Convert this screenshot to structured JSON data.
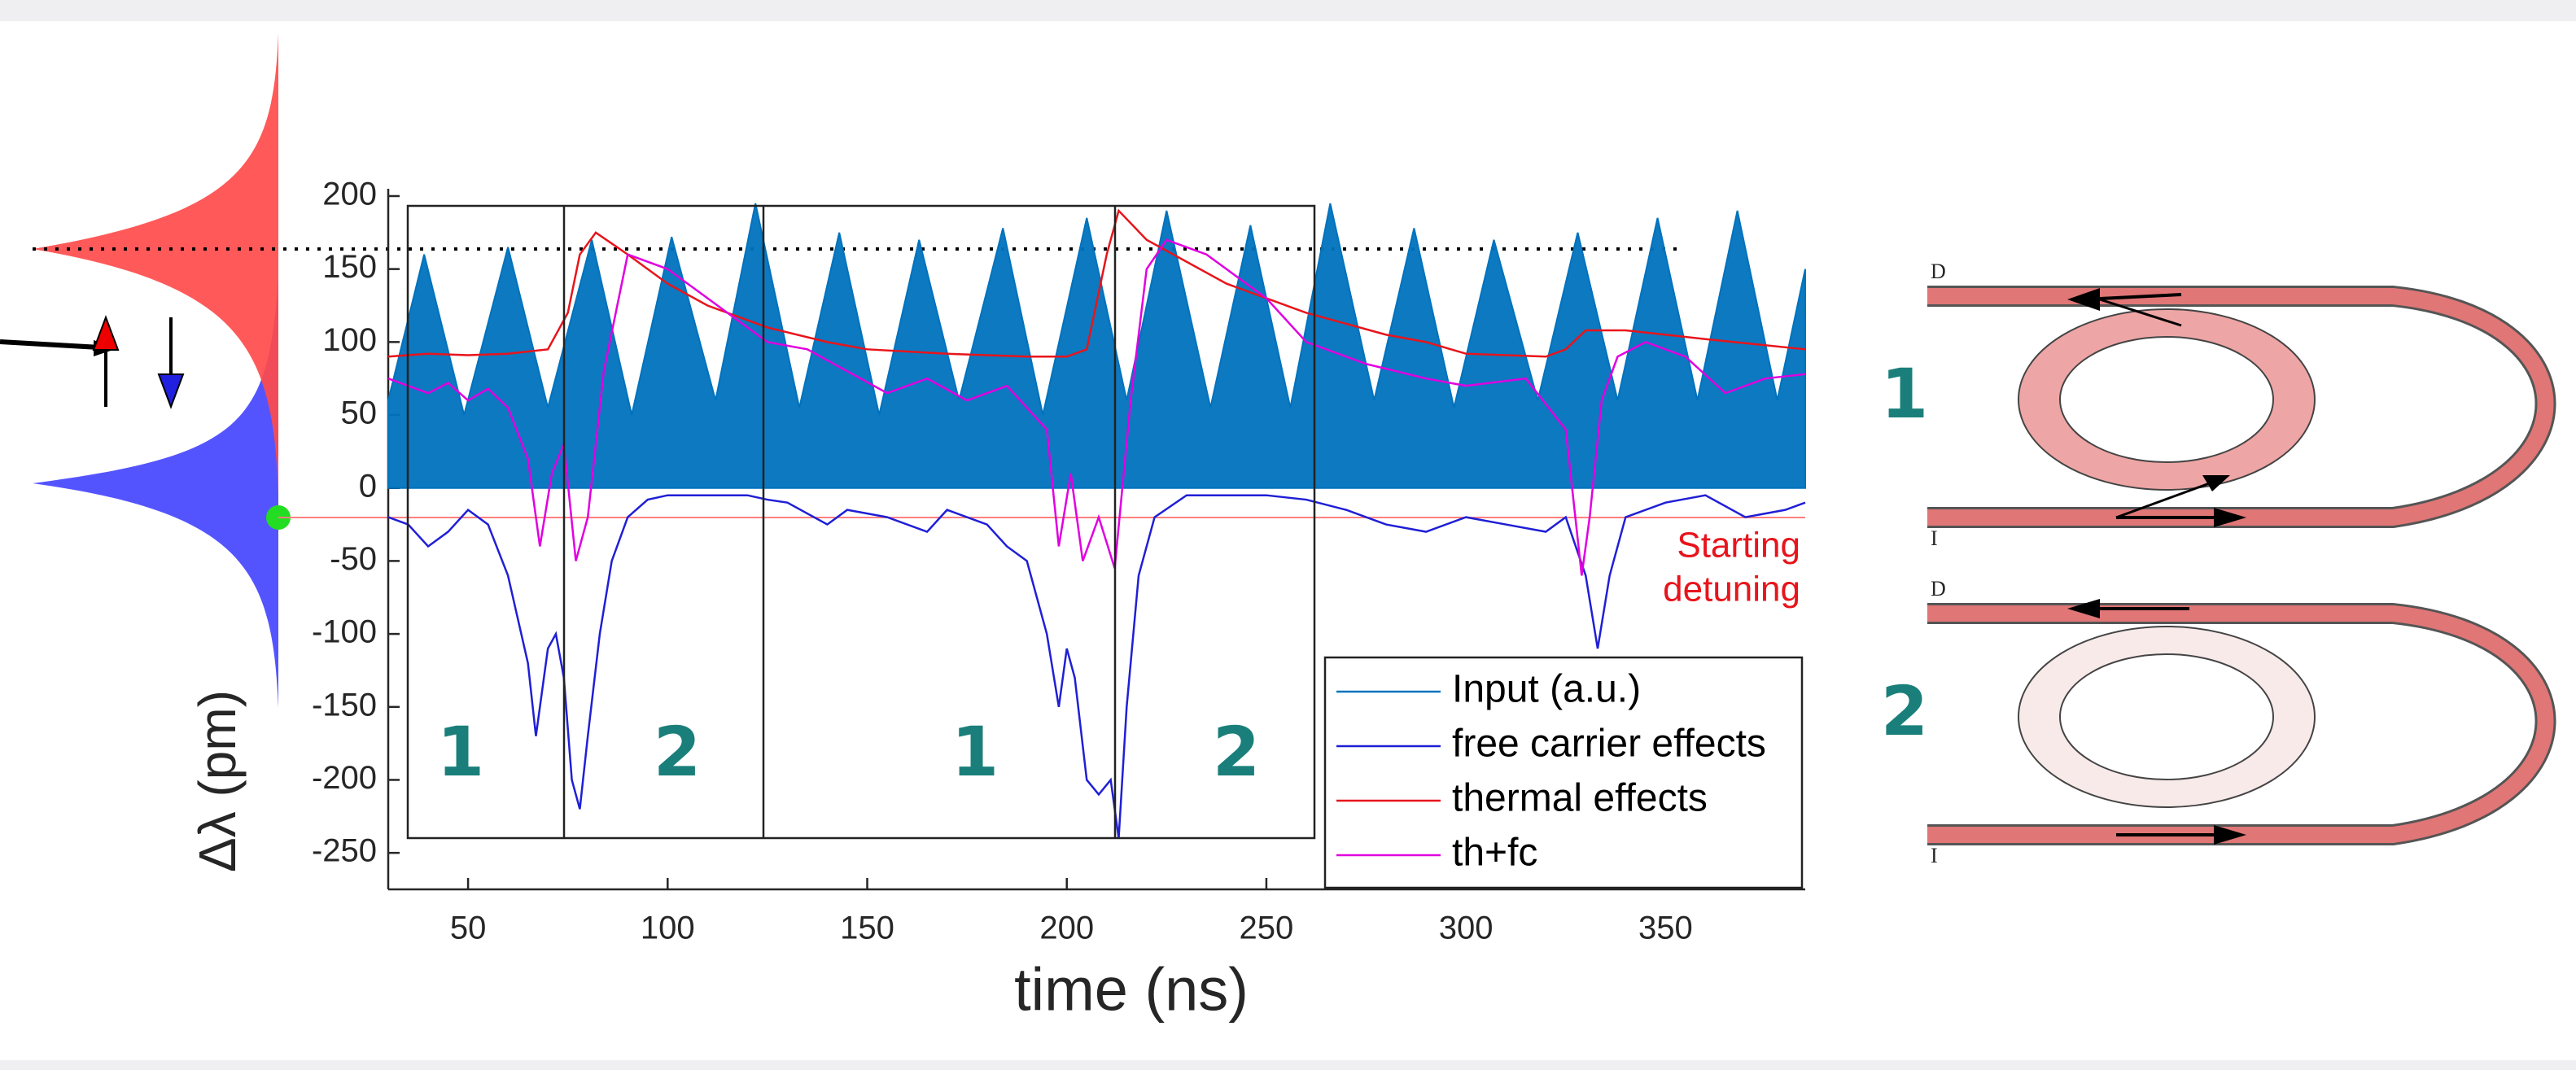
{
  "chart_data": {
    "type": "line",
    "xlabel": "time (ns)",
    "ylabel": "Δλ (pm)",
    "xlim": [
      30,
      385
    ],
    "ylim": [
      -275,
      205
    ],
    "xticks": [
      50,
      100,
      150,
      200,
      250,
      300,
      350
    ],
    "yticks": [
      -250,
      -200,
      -150,
      -100,
      -50,
      0,
      50,
      100,
      150,
      200
    ],
    "legend": "lower right",
    "annotation": [
      "Starting",
      "detuning"
    ],
    "region_labels": [
      "1",
      "2",
      "1",
      "2"
    ],
    "series": [
      {
        "name": "Input (a.u.)",
        "color": "#0072bd",
        "fill": true,
        "x": [
          30,
          39,
          49,
          60,
          70,
          81,
          91,
          101,
          112,
          122,
          133,
          143,
          153,
          163,
          173,
          184,
          194,
          205,
          215,
          225,
          236,
          246,
          256,
          266,
          277,
          287,
          297,
          307,
          318,
          328,
          338,
          348,
          358,
          368,
          378,
          385
        ],
        "values": [
          60,
          160,
          50,
          165,
          55,
          170,
          50,
          172,
          60,
          195,
          55,
          175,
          50,
          170,
          60,
          178,
          50,
          185,
          60,
          190,
          55,
          180,
          55,
          195,
          60,
          178,
          55,
          170,
          60,
          175,
          60,
          185,
          60,
          190,
          60,
          150
        ]
      },
      {
        "name": "free carrier effects",
        "color": "#1f1fd6",
        "x": [
          30,
          35,
          40,
          45,
          50,
          55,
          60,
          65,
          67,
          70,
          72,
          74,
          76,
          78,
          80,
          83,
          86,
          90,
          95,
          100,
          110,
          120,
          125,
          130,
          140,
          145,
          155,
          165,
          170,
          180,
          185,
          190,
          195,
          198,
          200,
          202,
          205,
          208,
          211,
          213,
          215,
          218,
          222,
          230,
          250,
          260,
          270,
          280,
          290,
          300,
          310,
          320,
          325,
          330,
          333,
          336,
          340,
          350,
          360,
          370,
          380,
          385
        ],
        "values": [
          -20,
          -25,
          -40,
          -30,
          -15,
          -25,
          -60,
          -120,
          -170,
          -110,
          -100,
          -130,
          -200,
          -220,
          -170,
          -100,
          -50,
          -20,
          -8,
          -5,
          -5,
          -5,
          -8,
          -10,
          -25,
          -15,
          -20,
          -30,
          -15,
          -25,
          -40,
          -50,
          -100,
          -150,
          -110,
          -130,
          -200,
          -210,
          -200,
          -240,
          -150,
          -60,
          -20,
          -5,
          -5,
          -8,
          -15,
          -25,
          -30,
          -20,
          -25,
          -30,
          -20,
          -60,
          -110,
          -60,
          -20,
          -10,
          -5,
          -20,
          -15,
          -10
        ]
      },
      {
        "name": "thermal effects",
        "color": "#e8141b",
        "x": [
          30,
          40,
          50,
          60,
          70,
          75,
          78,
          82,
          90,
          100,
          110,
          125,
          140,
          150,
          170,
          190,
          200,
          205,
          210,
          213,
          220,
          240,
          260,
          280,
          290,
          300,
          320,
          325,
          330,
          340,
          360,
          385
        ],
        "values": [
          90,
          92,
          91,
          92,
          95,
          120,
          160,
          175,
          160,
          140,
          125,
          110,
          100,
          95,
          92,
          90,
          90,
          95,
          160,
          190,
          170,
          140,
          120,
          105,
          100,
          92,
          90,
          95,
          108,
          108,
          102,
          95
        ]
      },
      {
        "name": "th+fc",
        "color": "#e000e0",
        "x": [
          30,
          35,
          40,
          45,
          50,
          55,
          60,
          65,
          68,
          71,
          74,
          77,
          80,
          84,
          90,
          100,
          110,
          125,
          135,
          145,
          155,
          165,
          175,
          185,
          195,
          198,
          201,
          204,
          208,
          212,
          216,
          220,
          225,
          235,
          250,
          260,
          275,
          290,
          300,
          315,
          325,
          329,
          331,
          334,
          338,
          345,
          355,
          365,
          375,
          385
        ],
        "values": [
          75,
          70,
          65,
          72,
          60,
          68,
          55,
          20,
          -40,
          10,
          30,
          -50,
          -20,
          80,
          160,
          150,
          130,
          100,
          95,
          80,
          65,
          75,
          60,
          70,
          40,
          -40,
          10,
          -50,
          -20,
          -55,
          60,
          150,
          170,
          160,
          130,
          100,
          85,
          75,
          70,
          75,
          40,
          -60,
          -20,
          60,
          90,
          100,
          90,
          65,
          75,
          78
        ]
      }
    ]
  },
  "diagram": {
    "labels": [
      "1",
      "2"
    ],
    "ports": [
      "D",
      "I",
      "D",
      "I"
    ]
  }
}
